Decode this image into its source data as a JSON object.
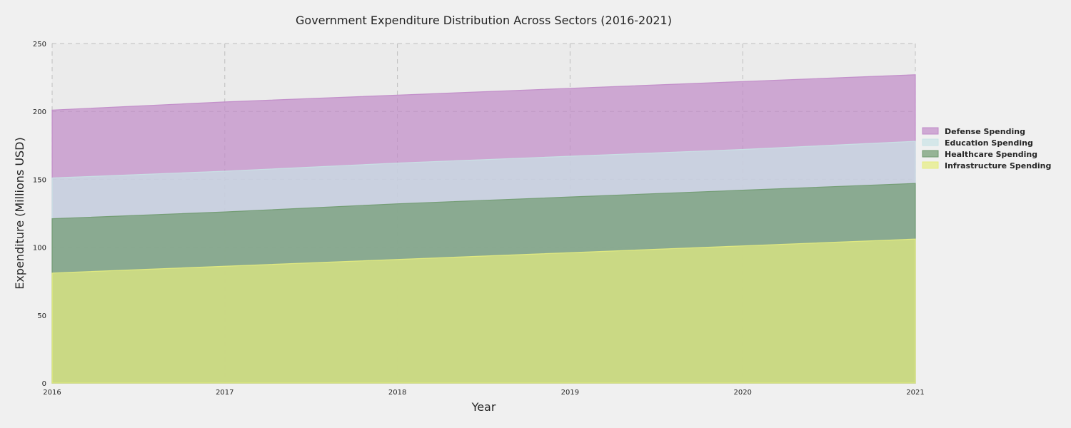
{
  "chart_data": {
    "type": "area",
    "stacked": false,
    "title": "Government Expenditure Distribution Across Sectors (2016-2021)",
    "xlabel": "Year",
    "ylabel": "Expenditure (Millions USD)",
    "x": [
      2016,
      2017,
      2018,
      2019,
      2020,
      2021
    ],
    "xlim": [
      2016,
      2021
    ],
    "ylim": [
      0,
      250
    ],
    "yticks": [
      0,
      50,
      100,
      150,
      200,
      250
    ],
    "grid": true,
    "legend_position": "right",
    "series": [
      {
        "name": "Defense Spending",
        "color": "#c08ac8",
        "values": [
          201,
          207,
          212,
          217,
          222,
          227
        ]
      },
      {
        "name": "Education Spending",
        "color": "#c9e3e6",
        "values": [
          151,
          156,
          162,
          167,
          172,
          178
        ]
      },
      {
        "name": "Healthcare Spending",
        "color": "#6f9a6f",
        "values": [
          121,
          126,
          132,
          137,
          142,
          147
        ]
      },
      {
        "name": "Infrastructure Spending",
        "color": "#e6ed7f",
        "values": [
          81,
          86,
          91,
          96,
          101,
          106
        ]
      }
    ]
  },
  "colors": {
    "background": "#f0f0f0",
    "plot_background": "#ebebeb"
  }
}
